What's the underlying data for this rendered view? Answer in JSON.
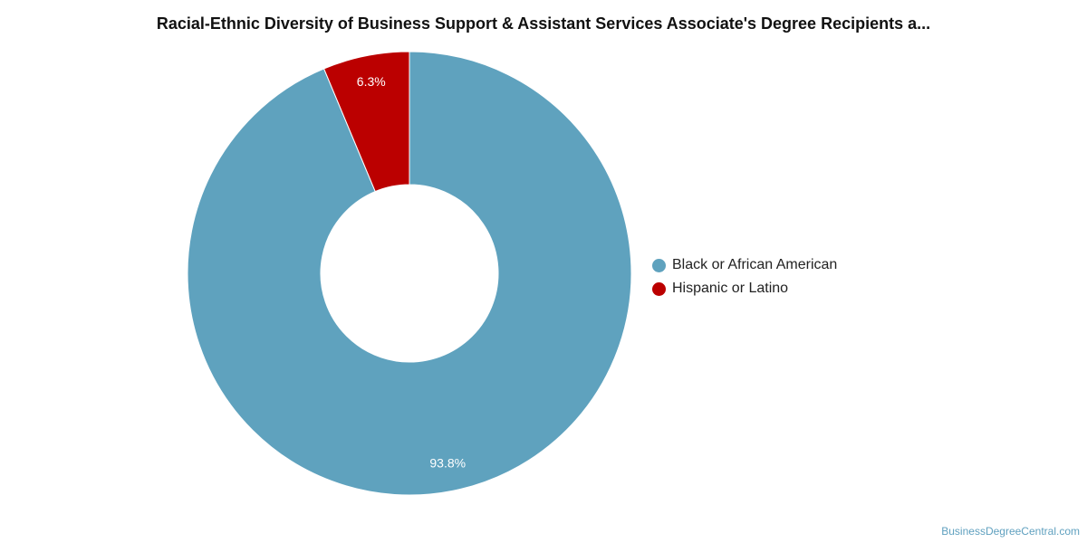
{
  "title": "Racial-Ethnic Diversity of Business Support & Assistant Services Associate's Degree Recipients a...",
  "source": "BusinessDegreeCentral.com",
  "chart_data": {
    "type": "pie",
    "variant": "donut",
    "title": "Racial-Ethnic Diversity of Business Support & Assistant Services Associate's Degree Recipients a...",
    "legend_position": "right",
    "slices": [
      {
        "label": "Black or African American",
        "value": 93.8,
        "value_label": "93.8%",
        "color": "#5fa2be"
      },
      {
        "label": "Hispanic or Latino",
        "value": 6.3,
        "value_label": "6.3%",
        "color": "#bb0000"
      }
    ]
  }
}
